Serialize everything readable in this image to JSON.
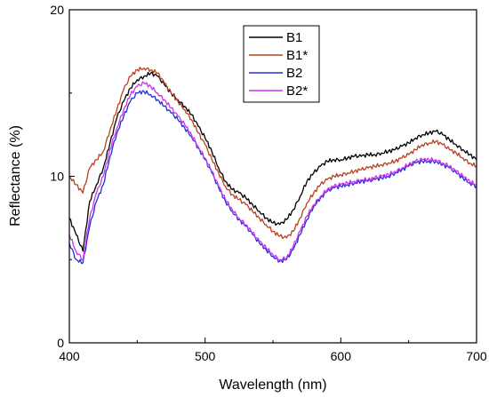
{
  "chart_data": {
    "type": "line",
    "title": "",
    "xlabel": "Wavelength (nm)",
    "ylabel": "Reflectance (%)",
    "xlim": [
      400,
      700
    ],
    "ylim": [
      0,
      20
    ],
    "x_ticks": [
      "400",
      "500",
      "600",
      "700"
    ],
    "y_ticks": [
      "0",
      "10",
      "20"
    ],
    "grid": false,
    "legend_position": "top-center",
    "x": [
      400,
      405,
      410,
      415,
      420,
      425,
      430,
      435,
      440,
      445,
      450,
      455,
      460,
      465,
      470,
      475,
      480,
      485,
      490,
      495,
      500,
      505,
      510,
      515,
      520,
      525,
      530,
      535,
      540,
      545,
      550,
      555,
      560,
      565,
      570,
      575,
      580,
      585,
      590,
      595,
      600,
      605,
      610,
      615,
      620,
      625,
      630,
      635,
      640,
      645,
      650,
      655,
      660,
      665,
      670,
      675,
      680,
      685,
      690,
      695,
      700
    ],
    "series": [
      {
        "name": "B1",
        "color": "#000000",
        "values": [
          7.5,
          6.5,
          5.5,
          8.5,
          9.5,
          10.5,
          12.0,
          13.5,
          14.5,
          15.3,
          15.8,
          16.0,
          16.2,
          16.0,
          15.5,
          15.0,
          14.6,
          14.2,
          13.7,
          13.0,
          12.3,
          11.5,
          10.5,
          9.7,
          9.2,
          9.0,
          8.7,
          8.3,
          7.9,
          7.5,
          7.2,
          7.1,
          7.4,
          8.0,
          8.8,
          9.7,
          10.2,
          10.6,
          10.9,
          11.0,
          11.0,
          11.1,
          11.2,
          11.2,
          11.3,
          11.3,
          11.4,
          11.5,
          11.6,
          11.8,
          12.0,
          12.3,
          12.5,
          12.6,
          12.7,
          12.5,
          12.2,
          11.9,
          11.6,
          11.3,
          11.0
        ]
      },
      {
        "name": "B1*",
        "color": "#b8401f",
        "values": [
          10.0,
          9.5,
          9.0,
          10.5,
          11.0,
          11.5,
          12.8,
          14.0,
          15.2,
          16.0,
          16.4,
          16.5,
          16.4,
          16.2,
          15.6,
          15.0,
          14.5,
          14.0,
          13.4,
          12.6,
          11.9,
          11.0,
          10.2,
          9.4,
          8.9,
          8.6,
          8.3,
          7.9,
          7.5,
          7.1,
          6.7,
          6.4,
          6.3,
          6.7,
          7.5,
          8.4,
          9.0,
          9.5,
          9.8,
          10.0,
          10.1,
          10.2,
          10.3,
          10.4,
          10.5,
          10.6,
          10.7,
          10.8,
          10.9,
          11.1,
          11.3,
          11.6,
          11.9,
          12.0,
          12.1,
          11.9,
          11.6,
          11.4,
          11.1,
          10.8,
          10.6
        ]
      },
      {
        "name": "B2",
        "color": "#1f2fd6",
        "values": [
          6.0,
          5.0,
          4.8,
          7.0,
          8.5,
          9.5,
          11.2,
          12.6,
          13.6,
          14.5,
          15.0,
          15.1,
          14.9,
          14.6,
          14.2,
          13.8,
          13.4,
          12.9,
          12.4,
          11.7,
          11.0,
          10.2,
          9.3,
          8.5,
          7.9,
          7.4,
          7.0,
          6.5,
          6.0,
          5.6,
          5.2,
          4.9,
          5.0,
          5.6,
          6.5,
          7.4,
          8.2,
          8.7,
          9.1,
          9.3,
          9.4,
          9.5,
          9.6,
          9.7,
          9.7,
          9.8,
          9.9,
          10.0,
          10.2,
          10.4,
          10.6,
          10.8,
          10.9,
          10.9,
          10.9,
          10.7,
          10.5,
          10.2,
          9.9,
          9.6,
          9.4
        ]
      },
      {
        "name": "B2*",
        "color": "#cc33ee",
        "values": [
          6.5,
          5.5,
          5.0,
          7.5,
          9.0,
          10.0,
          11.6,
          12.9,
          14.0,
          14.9,
          15.4,
          15.6,
          15.4,
          15.0,
          14.6,
          14.1,
          13.6,
          13.1,
          12.5,
          11.8,
          11.1,
          10.3,
          9.4,
          8.6,
          8.0,
          7.5,
          7.1,
          6.6,
          6.1,
          5.7,
          5.3,
          5.0,
          5.1,
          5.8,
          6.7,
          7.6,
          8.3,
          8.8,
          9.2,
          9.4,
          9.5,
          9.6,
          9.7,
          9.8,
          9.8,
          9.9,
          10.0,
          10.1,
          10.3,
          10.5,
          10.7,
          10.9,
          11.0,
          11.0,
          11.0,
          10.8,
          10.6,
          10.3,
          10.0,
          9.7,
          9.5
        ]
      }
    ]
  }
}
